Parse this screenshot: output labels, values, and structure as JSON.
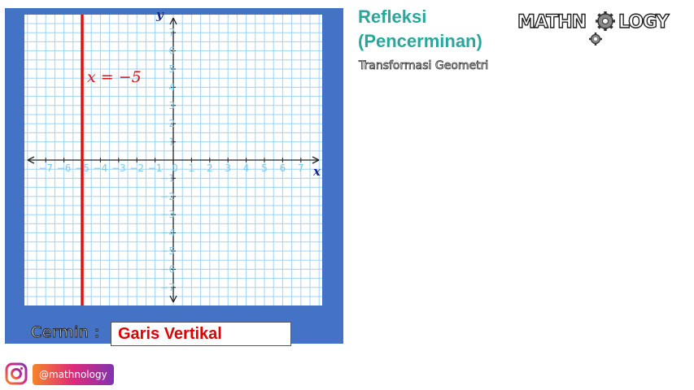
{
  "title_line1": "Refleksi",
  "title_line2": "(Pencerminan)",
  "subtitle": "Transformasi Geometri",
  "logo_text_left": "MATHN",
  "logo_text_right": "LOGY",
  "graph": {
    "x_axis_label": "x",
    "y_axis_label": "y",
    "range": [
      -7,
      7
    ],
    "ticks": [
      -7,
      -6,
      -5,
      -4,
      -3,
      -2,
      -1,
      1,
      2,
      3,
      4,
      5,
      6,
      7
    ],
    "origin_label": "0",
    "mirror_line_x": -5,
    "mirror_line_label": "x = −5",
    "mirror_line_color": "#e01010",
    "grid_color": "#9fd3f3",
    "background_color": "#4472c4"
  },
  "mirror": {
    "label": "Cermin :",
    "value": "Garis Vertikal"
  },
  "footer": {
    "instagram_icon": "instagram-icon",
    "handle": "@mathnology"
  }
}
